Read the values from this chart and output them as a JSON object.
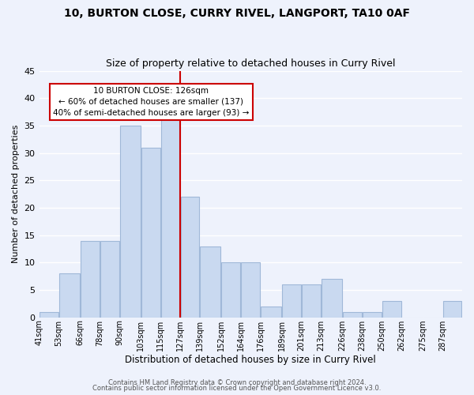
{
  "title_line1": "10, BURTON CLOSE, CURRY RIVEL, LANGPORT, TA10 0AF",
  "title_line2": "Size of property relative to detached houses in Curry Rivel",
  "xlabel": "Distribution of detached houses by size in Curry Rivel",
  "ylabel": "Number of detached properties",
  "bar_edges": [
    41,
    53,
    66,
    78,
    90,
    103,
    115,
    127,
    139,
    152,
    164,
    176,
    189,
    201,
    213,
    226,
    238,
    250,
    262,
    275,
    287,
    299
  ],
  "bar_heights": [
    1,
    8,
    14,
    14,
    35,
    31,
    37,
    22,
    13,
    10,
    10,
    2,
    6,
    6,
    7,
    1,
    1,
    3,
    0,
    0,
    3
  ],
  "bar_color": "#c9d9f0",
  "bar_edge_color": "#a0b8d8",
  "ref_line_x": 127,
  "ref_line_color": "#cc0000",
  "annotation_line1": "10 BURTON CLOSE: 126sqm",
  "annotation_line2": "← 60% of detached houses are smaller (137)",
  "annotation_line3": "40% of semi-detached houses are larger (93) →",
  "annotation_box_color": "#ffffff",
  "annotation_box_edge_color": "#cc0000",
  "ylim": [
    0,
    45
  ],
  "tick_labels": [
    "41sqm",
    "53sqm",
    "66sqm",
    "78sqm",
    "90sqm",
    "103sqm",
    "115sqm",
    "127sqm",
    "139sqm",
    "152sqm",
    "164sqm",
    "176sqm",
    "189sqm",
    "201sqm",
    "213sqm",
    "226sqm",
    "238sqm",
    "250sqm",
    "262sqm",
    "275sqm",
    "287sqm"
  ],
  "footer_line1": "Contains HM Land Registry data © Crown copyright and database right 2024.",
  "footer_line2": "Contains public sector information licensed under the Open Government Licence v3.0.",
  "bg_color": "#eef2fc",
  "grid_color": "#ffffff",
  "yticks": [
    0,
    5,
    10,
    15,
    20,
    25,
    30,
    35,
    40,
    45
  ]
}
